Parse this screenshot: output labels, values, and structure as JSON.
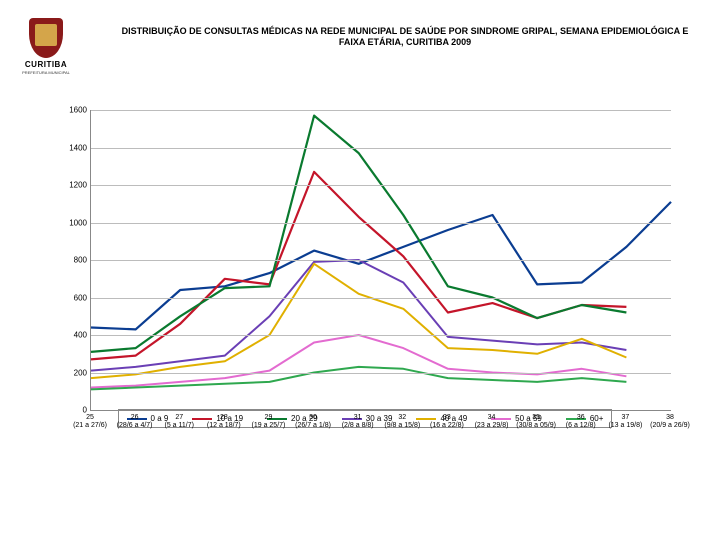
{
  "logo": {
    "brand": "CURITIBA",
    "sub": "PREFEITURA MUNICIPAL"
  },
  "title_line1": "DISTRIBUIÇÃO DE CONSULTAS MÉDICAS NA REDE MUNICIPAL DE SAÚDE POR SINDROME GRIPAL, SEMANA EPIDEMIOLÓGICA E",
  "title_line2": "FAIXA ETÁRIA, CURITIBA 2009",
  "chart": {
    "type": "line",
    "ylim": [
      0,
      1600
    ],
    "ytick_step": 200,
    "background_color": "#ffffff",
    "grid_color": "#bcbcbc",
    "label_fontsize": 8,
    "x_categories": [
      {
        "n": "25",
        "r": "(21 a 27/6)"
      },
      {
        "n": "26",
        "r": "(28/6 a 4/7)"
      },
      {
        "n": "27",
        "r": "(5 a 11/7)"
      },
      {
        "n": "28",
        "r": "(12 a 18/7)"
      },
      {
        "n": "29",
        "r": "(19 a 25/7)"
      },
      {
        "n": "30",
        "r": "(26/7 a 1/8)"
      },
      {
        "n": "31",
        "r": "(2/8 a 8/8)"
      },
      {
        "n": "32",
        "r": "(9/8 a 15/8)"
      },
      {
        "n": "33",
        "r": "(16 a 22/8)"
      },
      {
        "n": "34",
        "r": "(23 a 29/8)"
      },
      {
        "n": "35",
        "r": "(30/8 a 05/9)"
      },
      {
        "n": "36",
        "r": "(6 a 12/8)"
      },
      {
        "n": "37",
        "r": "(13 a 19/8)"
      },
      {
        "n": "38",
        "r": "(20/9 a 26/9)"
      }
    ],
    "series": [
      {
        "name": "0 a 9",
        "color": "#0b3d91",
        "width": 2.2,
        "values": [
          440,
          430,
          640,
          660,
          730,
          850,
          780,
          870,
          960,
          1040,
          670,
          680,
          870,
          1110
        ]
      },
      {
        "name": "10 a 19",
        "color": "#c4152a",
        "width": 2.2,
        "values": [
          270,
          290,
          460,
          700,
          670,
          1270,
          1030,
          820,
          520,
          570,
          490,
          560,
          550,
          null
        ]
      },
      {
        "name": "20 a 29",
        "color": "#0a7a2f",
        "width": 2.2,
        "values": [
          310,
          330,
          500,
          650,
          660,
          1570,
          1370,
          1040,
          660,
          600,
          490,
          560,
          520,
          null
        ]
      },
      {
        "name": "30 a 39",
        "color": "#6a3fb5",
        "width": 2,
        "values": [
          210,
          230,
          260,
          290,
          500,
          790,
          800,
          680,
          390,
          370,
          350,
          360,
          320,
          null
        ]
      },
      {
        "name": "40 a 49",
        "color": "#e0b000",
        "width": 2,
        "values": [
          170,
          190,
          230,
          260,
          400,
          780,
          620,
          540,
          330,
          320,
          300,
          380,
          280,
          null
        ]
      },
      {
        "name": "50 a 59",
        "color": "#e36bd0",
        "width": 2,
        "values": [
          120,
          130,
          150,
          170,
          210,
          360,
          400,
          330,
          220,
          200,
          190,
          220,
          180,
          null
        ]
      },
      {
        "name": "60+",
        "color": "#2fa84f",
        "width": 2,
        "values": [
          110,
          120,
          130,
          140,
          150,
          200,
          230,
          220,
          170,
          160,
          150,
          170,
          150,
          null
        ]
      }
    ]
  },
  "legend_title": null
}
